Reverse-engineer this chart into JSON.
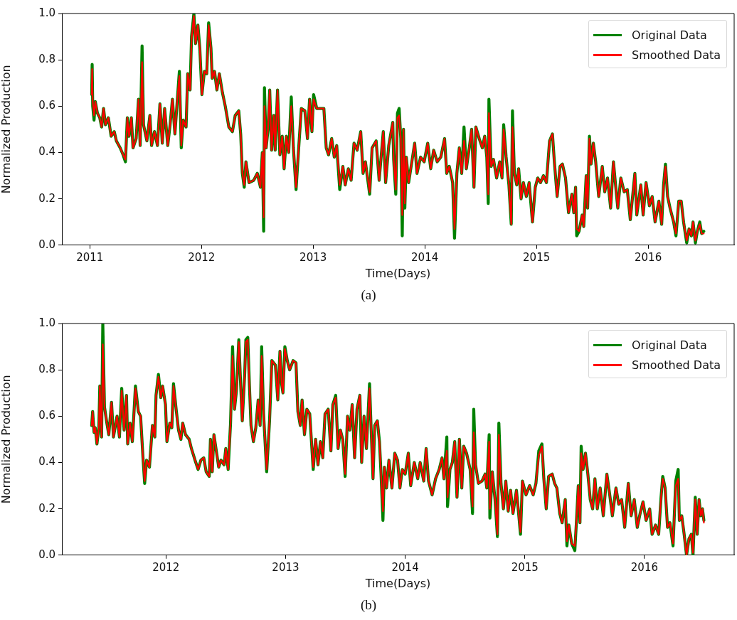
{
  "chart_data": [
    {
      "type": "line",
      "xlabel": "Time(Days)",
      "ylabel": "Normalized Production",
      "legend": "top right",
      "marker": "none",
      "annotations": [
        "(a)"
      ],
      "xlim": [
        2010.75,
        2016.77
      ],
      "xticks": [
        2011,
        2012,
        2013,
        2014,
        2015,
        2016
      ],
      "ylim": [
        0,
        1
      ],
      "yticks": [
        {
          "value": 0,
          "label": "0.0"
        },
        {
          "value": 0.2,
          "label": "0.2"
        },
        {
          "value": 0.4,
          "label": "0.4"
        },
        {
          "value": 0.6,
          "label": "0.6"
        },
        {
          "value": 0.8,
          "label": "0.8"
        },
        {
          "value": 1,
          "label": "1.0"
        }
      ],
      "x": [
        2011.017,
        2011.021,
        2011.026,
        2011.038,
        2011.049,
        2011.068,
        2011.089,
        2011.106,
        2011.123,
        2011.14,
        2011.166,
        2011.191,
        2011.219,
        2011.238,
        2011.272,
        2011.298,
        2011.319,
        2011.336,
        2011.351,
        2011.372,
        2011.387,
        2011.415,
        2011.436,
        2011.451,
        2011.468,
        2011.481,
        2011.511,
        2011.538,
        2011.553,
        2011.579,
        2011.606,
        2011.628,
        2011.649,
        2011.67,
        2011.698,
        2011.719,
        2011.74,
        2011.762,
        2011.787,
        2011.802,
        2011.819,
        2011.836,
        2011.862,
        2011.877,
        2011.898,
        2011.911,
        2011.932,
        2011.947,
        2011.968,
        2011.985,
        2012.004,
        2012.026,
        2012.047,
        2012.064,
        2012.085,
        2012.096,
        2012.117,
        2012.138,
        2012.16,
        2012.187,
        2012.213,
        2012.245,
        2012.277,
        2012.302,
        2012.334,
        2012.351,
        2012.366,
        2012.383,
        2012.398,
        2012.426,
        2012.468,
        2012.5,
        2012.528,
        2012.545,
        2012.557,
        2012.564,
        2012.579,
        2012.596,
        2012.611,
        2012.628,
        2012.647,
        2012.66,
        2012.681,
        2012.702,
        2012.723,
        2012.74,
        2012.76,
        2012.781,
        2012.804,
        2012.823,
        2012.847,
        2012.872,
        2012.894,
        2012.926,
        2012.949,
        2012.968,
        2012.989,
        2013.004,
        2013.032,
        2013.064,
        2013.096,
        2013.117,
        2013.138,
        2013.166,
        2013.189,
        2013.211,
        2013.238,
        2013.266,
        2013.287,
        2013.315,
        2013.34,
        2013.366,
        2013.394,
        2013.426,
        2013.447,
        2013.468,
        2013.506,
        2013.528,
        2013.564,
        2013.591,
        2013.628,
        2013.649,
        2013.677,
        2013.713,
        2013.721,
        2013.74,
        2013.755,
        2013.77,
        2013.785,
        2013.798,
        2013.809,
        2013.821,
        2013.834,
        2013.855,
        2013.887,
        2013.909,
        2013.93,
        2013.962,
        2013.994,
        2014.026,
        2014.053,
        2014.079,
        2014.111,
        2014.143,
        2014.177,
        2014.196,
        2014.219,
        2014.249,
        2014.266,
        2014.287,
        2014.309,
        2014.33,
        2014.351,
        2014.372,
        2014.398,
        2014.419,
        2014.44,
        2014.457,
        2014.487,
        2014.515,
        2014.536,
        2014.555,
        2014.568,
        2014.574,
        2014.594,
        2014.615,
        2014.643,
        2014.67,
        2014.691,
        2014.706,
        2014.728,
        2014.753,
        2014.774,
        2014.785,
        2014.802,
        2014.823,
        2014.84,
        2014.862,
        2014.883,
        2014.909,
        2014.934,
        2014.964,
        2014.989,
        2015.011,
        2015.036,
        2015.062,
        2015.089,
        2015.117,
        2015.143,
        2015.16,
        2015.185,
        2015.211,
        2015.232,
        2015.26,
        2015.287,
        2015.317,
        2015.334,
        2015.35,
        2015.36,
        2015.381,
        2015.409,
        2015.423,
        2015.445,
        2015.458,
        2015.474,
        2015.489,
        2015.509,
        2015.53,
        2015.557,
        2015.589,
        2015.611,
        2015.636,
        2015.664,
        2015.689,
        2015.706,
        2015.728,
        2015.755,
        2015.785,
        2015.813,
        2015.84,
        2015.881,
        2015.898,
        2015.934,
        2015.955,
        2015.981,
        2016.011,
        2016.036,
        2016.062,
        2016.096,
        2016.121,
        2016.138,
        2016.155,
        2016.174,
        2016.196,
        2016.228,
        2016.249,
        2016.274,
        2016.296,
        2016.317,
        2016.345,
        2016.366,
        2016.387,
        2016.402,
        2016.423,
        2016.44,
        2016.462,
        2016.479,
        2016.498
      ],
      "series": [
        {
          "name": "Original Data",
          "color": "#008000",
          "values": [
            0.65,
            0.78,
            0.6,
            0.54,
            0.62,
            0.57,
            0.55,
            0.51,
            0.59,
            0.52,
            0.55,
            0.47,
            0.49,
            0.45,
            0.42,
            0.39,
            0.36,
            0.55,
            0.47,
            0.55,
            0.42,
            0.46,
            0.63,
            0.43,
            0.86,
            0.52,
            0.45,
            0.56,
            0.43,
            0.49,
            0.43,
            0.61,
            0.44,
            0.59,
            0.43,
            0.52,
            0.63,
            0.48,
            0.65,
            0.75,
            0.42,
            0.54,
            0.51,
            0.74,
            0.67,
            0.9,
            1.0,
            0.87,
            0.95,
            0.85,
            0.65,
            0.75,
            0.74,
            0.96,
            0.85,
            0.72,
            0.75,
            0.67,
            0.74,
            0.66,
            0.6,
            0.51,
            0.49,
            0.56,
            0.58,
            0.48,
            0.31,
            0.25,
            0.36,
            0.27,
            0.28,
            0.31,
            0.25,
            0.4,
            0.06,
            0.68,
            0.42,
            0.5,
            0.67,
            0.41,
            0.56,
            0.41,
            0.67,
            0.39,
            0.47,
            0.33,
            0.47,
            0.4,
            0.64,
            0.42,
            0.24,
            0.43,
            0.59,
            0.58,
            0.46,
            0.63,
            0.49,
            0.65,
            0.59,
            0.59,
            0.59,
            0.42,
            0.39,
            0.46,
            0.38,
            0.43,
            0.24,
            0.34,
            0.26,
            0.33,
            0.28,
            0.44,
            0.41,
            0.49,
            0.31,
            0.36,
            0.22,
            0.42,
            0.45,
            0.28,
            0.49,
            0.27,
            0.43,
            0.53,
            0.37,
            0.22,
            0.57,
            0.59,
            0.46,
            0.04,
            0.5,
            0.16,
            0.38,
            0.27,
            0.37,
            0.44,
            0.31,
            0.38,
            0.36,
            0.44,
            0.33,
            0.41,
            0.36,
            0.38,
            0.46,
            0.31,
            0.34,
            0.27,
            0.03,
            0.31,
            0.42,
            0.31,
            0.51,
            0.33,
            0.42,
            0.5,
            0.25,
            0.51,
            0.46,
            0.42,
            0.47,
            0.38,
            0.18,
            0.63,
            0.34,
            0.37,
            0.29,
            0.36,
            0.29,
            0.52,
            0.38,
            0.26,
            0.09,
            0.58,
            0.31,
            0.26,
            0.33,
            0.2,
            0.27,
            0.21,
            0.27,
            0.1,
            0.25,
            0.29,
            0.27,
            0.3,
            0.27,
            0.45,
            0.48,
            0.36,
            0.21,
            0.34,
            0.35,
            0.29,
            0.14,
            0.22,
            0.14,
            0.25,
            0.04,
            0.06,
            0.13,
            0.08,
            0.3,
            0.16,
            0.47,
            0.35,
            0.44,
            0.36,
            0.21,
            0.34,
            0.23,
            0.29,
            0.16,
            0.36,
            0.27,
            0.16,
            0.29,
            0.23,
            0.24,
            0.11,
            0.31,
            0.13,
            0.26,
            0.13,
            0.27,
            0.17,
            0.21,
            0.1,
            0.19,
            0.09,
            0.26,
            0.35,
            0.21,
            0.16,
            0.1,
            0.04,
            0.19,
            0.19,
            0.1,
            0.01,
            0.07,
            0.04,
            0.1,
            0.01,
            0.06,
            0.1,
            0.05,
            0.06
          ]
        },
        {
          "name": "Smoothed Data",
          "color": "#ff0000",
          "values": [
            0.65,
            0.76,
            0.62,
            0.56,
            0.62,
            0.57,
            0.55,
            0.51,
            0.59,
            0.52,
            0.55,
            0.47,
            0.49,
            0.45,
            0.42,
            0.39,
            0.37,
            0.55,
            0.47,
            0.55,
            0.42,
            0.46,
            0.63,
            0.43,
            0.79,
            0.52,
            0.45,
            0.56,
            0.43,
            0.49,
            0.43,
            0.61,
            0.44,
            0.59,
            0.43,
            0.52,
            0.63,
            0.48,
            0.65,
            0.73,
            0.43,
            0.54,
            0.51,
            0.74,
            0.67,
            0.89,
            0.99,
            0.87,
            0.95,
            0.85,
            0.65,
            0.75,
            0.74,
            0.95,
            0.85,
            0.72,
            0.75,
            0.67,
            0.74,
            0.66,
            0.6,
            0.51,
            0.49,
            0.56,
            0.58,
            0.48,
            0.31,
            0.26,
            0.36,
            0.27,
            0.28,
            0.31,
            0.25,
            0.4,
            0.12,
            0.6,
            0.42,
            0.5,
            0.67,
            0.41,
            0.56,
            0.41,
            0.67,
            0.39,
            0.47,
            0.33,
            0.47,
            0.4,
            0.6,
            0.42,
            0.25,
            0.43,
            0.59,
            0.58,
            0.46,
            0.63,
            0.49,
            0.63,
            0.59,
            0.59,
            0.59,
            0.42,
            0.39,
            0.46,
            0.38,
            0.43,
            0.26,
            0.34,
            0.26,
            0.33,
            0.28,
            0.44,
            0.41,
            0.49,
            0.31,
            0.36,
            0.23,
            0.42,
            0.45,
            0.28,
            0.49,
            0.27,
            0.43,
            0.53,
            0.37,
            0.24,
            0.55,
            0.56,
            0.46,
            0.13,
            0.5,
            0.18,
            0.38,
            0.27,
            0.37,
            0.44,
            0.31,
            0.38,
            0.36,
            0.44,
            0.33,
            0.41,
            0.36,
            0.38,
            0.46,
            0.31,
            0.34,
            0.27,
            0.07,
            0.31,
            0.42,
            0.31,
            0.45,
            0.33,
            0.42,
            0.5,
            0.25,
            0.51,
            0.46,
            0.42,
            0.47,
            0.38,
            0.22,
            0.57,
            0.34,
            0.37,
            0.29,
            0.36,
            0.29,
            0.5,
            0.38,
            0.26,
            0.09,
            0.51,
            0.31,
            0.26,
            0.33,
            0.2,
            0.27,
            0.21,
            0.27,
            0.1,
            0.25,
            0.29,
            0.27,
            0.3,
            0.27,
            0.45,
            0.48,
            0.36,
            0.21,
            0.34,
            0.35,
            0.29,
            0.14,
            0.22,
            0.14,
            0.25,
            0.07,
            0.06,
            0.13,
            0.08,
            0.3,
            0.16,
            0.46,
            0.35,
            0.44,
            0.36,
            0.21,
            0.34,
            0.23,
            0.29,
            0.16,
            0.36,
            0.27,
            0.16,
            0.29,
            0.23,
            0.24,
            0.11,
            0.31,
            0.13,
            0.26,
            0.13,
            0.27,
            0.17,
            0.21,
            0.1,
            0.19,
            0.09,
            0.26,
            0.34,
            0.21,
            0.16,
            0.1,
            0.05,
            0.19,
            0.19,
            0.1,
            0.02,
            0.07,
            0.04,
            0.1,
            0.02,
            0.06,
            0.09,
            0.05,
            0.05
          ]
        }
      ]
    },
    {
      "type": "line",
      "xlabel": "Time(Days)",
      "ylabel": "Normalized Production",
      "legend": "top right",
      "marker": "none",
      "annotations": [
        "(b)"
      ],
      "xlim": [
        2011.13,
        2016.75
      ],
      "xticks": [
        2012,
        2013,
        2014,
        2015,
        2016
      ],
      "ylim": [
        0,
        1
      ],
      "yticks": [
        {
          "value": 0,
          "label": "0.0"
        },
        {
          "value": 0.2,
          "label": "0.2"
        },
        {
          "value": 0.4,
          "label": "0.4"
        },
        {
          "value": 0.6,
          "label": "0.6"
        },
        {
          "value": 0.8,
          "label": "0.8"
        },
        {
          "value": 1,
          "label": "1.0"
        }
      ],
      "x": [
        2011.379,
        2011.387,
        2011.399,
        2011.409,
        2011.423,
        2011.439,
        2011.447,
        2011.462,
        2011.472,
        2011.486,
        2011.506,
        2011.522,
        2011.545,
        2011.561,
        2011.591,
        2011.611,
        2011.63,
        2011.65,
        2011.67,
        2011.68,
        2011.7,
        2011.719,
        2011.745,
        2011.769,
        2011.788,
        2011.808,
        2011.822,
        2011.838,
        2011.862,
        2011.887,
        2011.907,
        2011.917,
        2011.937,
        2011.957,
        2011.972,
        2011.996,
        2012.008,
        2012.032,
        2012.049,
        2012.063,
        2012.085,
        2012.105,
        2012.125,
        2012.14,
        2012.164,
        2012.194,
        2012.213,
        2012.243,
        2012.269,
        2012.292,
        2012.316,
        2012.336,
        2012.362,
        2012.372,
        2012.387,
        2012.401,
        2012.421,
        2012.441,
        2012.46,
        2012.486,
        2012.5,
        2012.52,
        2012.54,
        2012.557,
        2012.573,
        2012.589,
        2012.609,
        2012.625,
        2012.638,
        2012.658,
        2012.668,
        2012.684,
        2012.698,
        2012.711,
        2012.731,
        2012.751,
        2012.771,
        2012.787,
        2012.8,
        2012.816,
        2012.842,
        2012.866,
        2012.885,
        2012.915,
        2012.935,
        2012.953,
        2012.967,
        2012.978,
        2012.994,
        2013.014,
        2013.034,
        2013.063,
        2013.087,
        2013.103,
        2013.123,
        2013.138,
        2013.158,
        2013.178,
        2013.202,
        2013.231,
        2013.251,
        2013.271,
        2013.291,
        2013.311,
        2013.33,
        2013.356,
        2013.379,
        2013.395,
        2013.419,
        2013.439,
        2013.458,
        2013.478,
        2013.498,
        2013.518,
        2013.537,
        2013.557,
        2013.577,
        2013.597,
        2013.621,
        2013.636,
        2013.656,
        2013.676,
        2013.702,
        2013.715,
        2013.731,
        2013.745,
        2013.767,
        2013.785,
        2013.798,
        2013.814,
        2013.826,
        2013.844,
        2013.864,
        2013.889,
        2013.913,
        2013.936,
        2013.956,
        2013.976,
        2014.0,
        2014.026,
        2014.046,
        2014.076,
        2014.105,
        2014.125,
        2014.155,
        2014.175,
        2014.195,
        2014.225,
        2014.254,
        2014.284,
        2014.308,
        2014.324,
        2014.348,
        2014.354,
        2014.374,
        2014.394,
        2014.414,
        2014.433,
        2014.453,
        2014.473,
        2014.489,
        2014.513,
        2014.543,
        2014.563,
        2014.573,
        2014.588,
        2014.612,
        2014.642,
        2014.668,
        2014.682,
        2014.702,
        2014.708,
        2014.728,
        2014.751,
        2014.771,
        2014.783,
        2014.801,
        2014.821,
        2014.841,
        2014.861,
        2014.881,
        2014.901,
        2014.93,
        2014.95,
        2014.964,
        2014.98,
        2015.01,
        2015.04,
        2015.07,
        2015.093,
        2015.117,
        2015.143,
        2015.159,
        2015.179,
        2015.199,
        2015.229,
        2015.249,
        2015.268,
        2015.292,
        2015.312,
        2015.338,
        2015.352,
        2015.368,
        2015.392,
        2015.418,
        2015.431,
        2015.447,
        2015.461,
        2015.471,
        2015.487,
        2015.507,
        2015.527,
        2015.547,
        2015.567,
        2015.586,
        2015.606,
        2015.63,
        2015.656,
        2015.686,
        2015.71,
        2015.732,
        2015.762,
        2015.785,
        2015.809,
        2015.835,
        2015.865,
        2015.889,
        2015.915,
        2015.94,
        2015.964,
        2015.988,
        2016.014,
        2016.044,
        2016.064,
        2016.093,
        2016.119,
        2016.139,
        2016.153,
        2016.173,
        2016.193,
        2016.213,
        2016.239,
        2016.262,
        2016.282,
        2016.292,
        2016.312,
        2016.332,
        2016.352,
        2016.372,
        2016.392,
        2016.406,
        2016.425,
        2016.441,
        2016.457,
        2016.471,
        2016.485,
        2016.497
      ],
      "series": [
        {
          "name": "Original Data",
          "color": "#008000",
          "values": [
            0.56,
            0.62,
            0.53,
            0.55,
            0.48,
            0.55,
            0.73,
            0.51,
            1.0,
            0.64,
            0.57,
            0.52,
            0.66,
            0.51,
            0.6,
            0.51,
            0.72,
            0.54,
            0.69,
            0.48,
            0.57,
            0.49,
            0.73,
            0.62,
            0.6,
            0.42,
            0.31,
            0.41,
            0.38,
            0.56,
            0.51,
            0.69,
            0.78,
            0.68,
            0.73,
            0.65,
            0.49,
            0.57,
            0.55,
            0.74,
            0.63,
            0.54,
            0.5,
            0.57,
            0.52,
            0.5,
            0.46,
            0.41,
            0.37,
            0.41,
            0.42,
            0.36,
            0.34,
            0.5,
            0.36,
            0.52,
            0.45,
            0.38,
            0.41,
            0.39,
            0.46,
            0.37,
            0.57,
            0.9,
            0.63,
            0.71,
            0.93,
            0.73,
            0.58,
            0.78,
            0.93,
            0.94,
            0.73,
            0.56,
            0.49,
            0.55,
            0.67,
            0.56,
            0.9,
            0.61,
            0.36,
            0.58,
            0.84,
            0.82,
            0.67,
            0.88,
            0.74,
            0.7,
            0.9,
            0.84,
            0.8,
            0.84,
            0.83,
            0.62,
            0.56,
            0.67,
            0.52,
            0.63,
            0.61,
            0.37,
            0.5,
            0.39,
            0.49,
            0.42,
            0.61,
            0.63,
            0.45,
            0.65,
            0.69,
            0.46,
            0.54,
            0.5,
            0.34,
            0.6,
            0.54,
            0.65,
            0.42,
            0.63,
            0.69,
            0.4,
            0.6,
            0.46,
            0.74,
            0.55,
            0.33,
            0.56,
            0.58,
            0.49,
            0.35,
            0.15,
            0.38,
            0.29,
            0.41,
            0.29,
            0.44,
            0.41,
            0.29,
            0.37,
            0.35,
            0.44,
            0.3,
            0.4,
            0.33,
            0.4,
            0.32,
            0.46,
            0.32,
            0.26,
            0.33,
            0.37,
            0.42,
            0.33,
            0.51,
            0.21,
            0.37,
            0.4,
            0.49,
            0.25,
            0.5,
            0.29,
            0.47,
            0.44,
            0.37,
            0.18,
            0.63,
            0.39,
            0.31,
            0.32,
            0.35,
            0.29,
            0.52,
            0.16,
            0.36,
            0.24,
            0.08,
            0.57,
            0.31,
            0.2,
            0.32,
            0.19,
            0.28,
            0.18,
            0.28,
            0.17,
            0.09,
            0.32,
            0.26,
            0.3,
            0.26,
            0.31,
            0.45,
            0.48,
            0.33,
            0.2,
            0.34,
            0.35,
            0.31,
            0.29,
            0.18,
            0.14,
            0.24,
            0.04,
            0.13,
            0.05,
            0.02,
            0.14,
            0.3,
            0.14,
            0.47,
            0.37,
            0.44,
            0.35,
            0.24,
            0.2,
            0.33,
            0.2,
            0.29,
            0.17,
            0.35,
            0.26,
            0.17,
            0.29,
            0.22,
            0.24,
            0.12,
            0.31,
            0.17,
            0.24,
            0.12,
            0.18,
            0.23,
            0.15,
            0.2,
            0.09,
            0.13,
            0.09,
            0.25,
            0.34,
            0.29,
            0.12,
            0.14,
            0.04,
            0.32,
            0.37,
            0.15,
            0.17,
            0.09,
            0,
            0.07,
            0.09,
            0,
            0.25,
            0.09,
            0.24,
            0.17,
            0.2,
            0.15
          ]
        },
        {
          "name": "Smoothed Data",
          "color": "#ff0000",
          "values": [
            0.56,
            0.62,
            0.53,
            0.55,
            0.48,
            0.55,
            0.73,
            0.51,
            0.91,
            0.64,
            0.57,
            0.52,
            0.66,
            0.51,
            0.6,
            0.51,
            0.71,
            0.54,
            0.69,
            0.48,
            0.57,
            0.49,
            0.72,
            0.62,
            0.6,
            0.42,
            0.32,
            0.41,
            0.38,
            0.56,
            0.51,
            0.69,
            0.77,
            0.68,
            0.73,
            0.65,
            0.49,
            0.57,
            0.55,
            0.73,
            0.63,
            0.54,
            0.5,
            0.57,
            0.52,
            0.5,
            0.46,
            0.41,
            0.37,
            0.41,
            0.42,
            0.36,
            0.34,
            0.5,
            0.36,
            0.52,
            0.45,
            0.38,
            0.41,
            0.39,
            0.46,
            0.37,
            0.57,
            0.86,
            0.63,
            0.71,
            0.92,
            0.73,
            0.58,
            0.78,
            0.92,
            0.93,
            0.73,
            0.56,
            0.49,
            0.55,
            0.67,
            0.56,
            0.86,
            0.61,
            0.37,
            0.58,
            0.84,
            0.82,
            0.67,
            0.88,
            0.74,
            0.7,
            0.89,
            0.84,
            0.8,
            0.84,
            0.83,
            0.62,
            0.56,
            0.67,
            0.52,
            0.63,
            0.61,
            0.38,
            0.5,
            0.39,
            0.49,
            0.42,
            0.61,
            0.63,
            0.45,
            0.65,
            0.68,
            0.46,
            0.54,
            0.5,
            0.35,
            0.6,
            0.54,
            0.65,
            0.42,
            0.63,
            0.69,
            0.4,
            0.6,
            0.46,
            0.72,
            0.55,
            0.33,
            0.56,
            0.58,
            0.49,
            0.35,
            0.19,
            0.38,
            0.29,
            0.41,
            0.29,
            0.44,
            0.41,
            0.29,
            0.37,
            0.35,
            0.44,
            0.3,
            0.4,
            0.33,
            0.4,
            0.32,
            0.46,
            0.32,
            0.26,
            0.33,
            0.37,
            0.42,
            0.33,
            0.45,
            0.25,
            0.37,
            0.4,
            0.49,
            0.25,
            0.5,
            0.29,
            0.47,
            0.44,
            0.37,
            0.21,
            0.53,
            0.39,
            0.31,
            0.32,
            0.35,
            0.29,
            0.49,
            0.2,
            0.36,
            0.24,
            0.09,
            0.52,
            0.31,
            0.2,
            0.32,
            0.19,
            0.28,
            0.18,
            0.28,
            0.17,
            0.1,
            0.32,
            0.26,
            0.3,
            0.26,
            0.31,
            0.43,
            0.47,
            0.33,
            0.2,
            0.34,
            0.35,
            0.31,
            0.29,
            0.18,
            0.14,
            0.24,
            0.06,
            0.13,
            0.05,
            0.04,
            0.14,
            0.3,
            0.14,
            0.44,
            0.37,
            0.44,
            0.35,
            0.24,
            0.2,
            0.33,
            0.2,
            0.29,
            0.17,
            0.35,
            0.26,
            0.17,
            0.29,
            0.22,
            0.24,
            0.12,
            0.31,
            0.17,
            0.24,
            0.12,
            0.18,
            0.23,
            0.15,
            0.2,
            0.09,
            0.13,
            0.09,
            0.25,
            0.33,
            0.29,
            0.12,
            0.14,
            0.05,
            0.3,
            0.33,
            0.15,
            0.17,
            0.09,
            0,
            0.07,
            0.09,
            0.01,
            0.24,
            0.09,
            0.24,
            0.17,
            0.2,
            0.14
          ]
        }
      ]
    }
  ]
}
